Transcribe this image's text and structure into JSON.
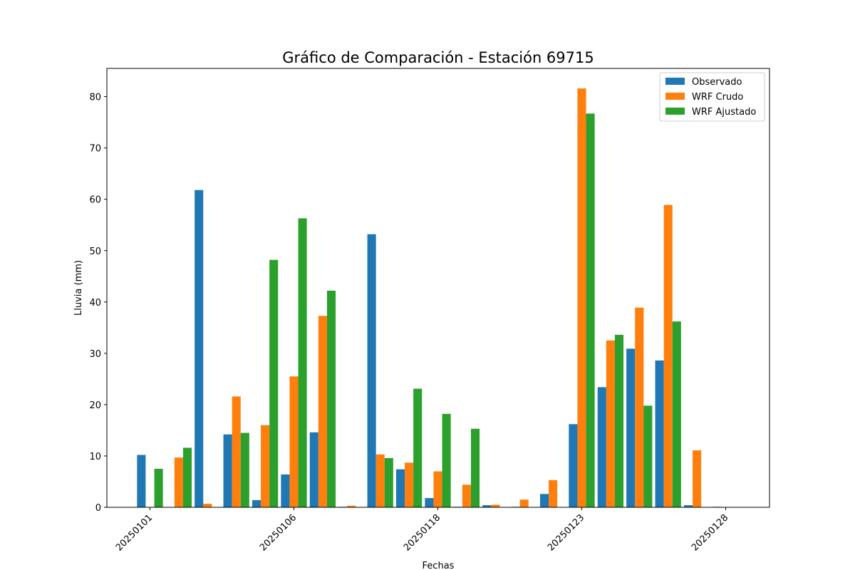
{
  "chart_data": {
    "type": "bar",
    "title": "Gráfico de Comparación - Estación 69715",
    "xlabel": "Fechas",
    "ylabel": "Lluvia (mm)",
    "ylim": [
      0,
      85.5
    ],
    "yticks": [
      0,
      10,
      20,
      30,
      40,
      50,
      60,
      70,
      80
    ],
    "xtick_labels": [
      "20250101",
      "20250106",
      "20250118",
      "20250123",
      "20250128"
    ],
    "xtick_group_indices": [
      0,
      5,
      10,
      15,
      20
    ],
    "group_count": 21,
    "grid": false,
    "legend_position": "upper right",
    "series": [
      {
        "name": "Observado",
        "color": "#1f77b4",
        "values": [
          10.2,
          0,
          61.8,
          14.2,
          1.4,
          6.4,
          14.6,
          0.1,
          53.2,
          7.4,
          1.8,
          0.1,
          0.4,
          0.1,
          2.6,
          16.2,
          23.4,
          30.9,
          28.6,
          0.4,
          0.1
        ]
      },
      {
        "name": "WRF Crudo",
        "color": "#ff7f0e",
        "values": [
          0,
          9.7,
          0.7,
          21.6,
          16.0,
          25.5,
          37.3,
          0.3,
          10.3,
          8.7,
          7.0,
          4.4,
          0.5,
          1.5,
          5.3,
          81.6,
          32.5,
          38.9,
          58.9,
          11.1,
          0
        ]
      },
      {
        "name": "WRF Ajustado",
        "color": "#2ca02c",
        "values": [
          7.5,
          11.6,
          0,
          14.5,
          48.2,
          56.3,
          42.2,
          0,
          9.6,
          23.1,
          18.2,
          15.3,
          0,
          0,
          0,
          76.7,
          33.6,
          19.8,
          36.2,
          0,
          0
        ]
      }
    ]
  }
}
